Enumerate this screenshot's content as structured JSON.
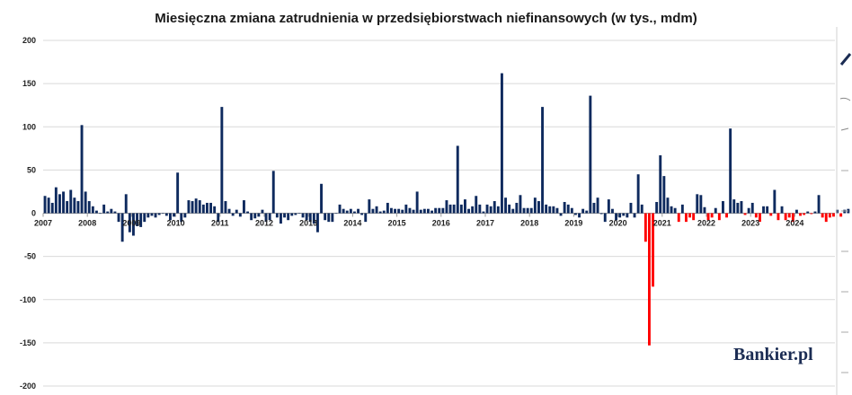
{
  "chart_data": {
    "type": "bar",
    "title": "Miesięczna zmiana zatrudnienia w przedsiębiorstwach niefinansowych (w tys., mdm)",
    "xlabel": "",
    "ylabel": "",
    "ylim": [
      -200,
      200
    ],
    "yticks": [
      200,
      150,
      100,
      50,
      0,
      -50,
      -100,
      -150,
      -200
    ],
    "grid": true,
    "legend": "none",
    "x_tick_labels": [
      "2007",
      "2008",
      "2009",
      "2010",
      "2011",
      "2012",
      "2013",
      "2014",
      "2015",
      "2016",
      "2017",
      "2018",
      "2019",
      "2020",
      "2021",
      "2022",
      "2023",
      "2024"
    ],
    "start": "2007-01",
    "series": [
      {
        "color": "#0e2a5e",
        "period": "2007-01 to 2020-12",
        "values": [
          20,
          18,
          12,
          30,
          22,
          25,
          14,
          27,
          18,
          14,
          102,
          25,
          14,
          8,
          3,
          0,
          10,
          2,
          5,
          2,
          -10,
          -33,
          22,
          -22,
          -26,
          -15,
          -16,
          -10,
          -5,
          -3,
          -5,
          -2,
          0,
          -3,
          -8,
          -4,
          47,
          -10,
          -5,
          15,
          14,
          17,
          15,
          10,
          12,
          12,
          8,
          -10,
          123,
          14,
          5,
          -3,
          4,
          -4,
          15,
          2,
          -8,
          -6,
          -4,
          4,
          -10,
          -8,
          49,
          -5,
          -12,
          -5,
          -8,
          -3,
          -2,
          0,
          -5,
          -8,
          -10,
          -12,
          -22,
          34,
          -8,
          -10,
          -10,
          0,
          10,
          5,
          3,
          5,
          2,
          5,
          -2,
          -10,
          16,
          5,
          8,
          2,
          3,
          12,
          6,
          5,
          5,
          4,
          10,
          6,
          4,
          25,
          4,
          5,
          5,
          3,
          6,
          6,
          6,
          15,
          10,
          10,
          78,
          10,
          16,
          5,
          8,
          20,
          10,
          2,
          10,
          8,
          14,
          8,
          162,
          18,
          10,
          5,
          12,
          21,
          6,
          6,
          6,
          18,
          14,
          123,
          10,
          8,
          8,
          6,
          -3,
          13,
          10,
          6,
          -2,
          -5,
          5,
          3,
          136,
          12,
          18,
          -1,
          -10,
          16,
          5,
          -8,
          -5,
          -3,
          -5,
          12,
          -5,
          45,
          10,
          -33,
          -153,
          -85
        ]
      },
      {
        "color": "#0e2a5e",
        "period": "2021-01 to 2024-12 (segments shown in navy)",
        "values": [
          13,
          67,
          43,
          18,
          8,
          6,
          -10,
          10,
          -10,
          -5,
          -8,
          22,
          21,
          7,
          -8,
          -5,
          6,
          -8,
          14,
          -5,
          98,
          16,
          12,
          14,
          -2,
          6,
          12,
          -5,
          -10,
          8,
          8,
          -3,
          27,
          -8,
          8,
          -8,
          -5,
          -10,
          4,
          -3,
          -2,
          2,
          -1,
          2,
          21,
          -5,
          -10,
          -5,
          -4,
          4,
          -4,
          4,
          5
        ]
      }
    ],
    "negative_color_after_2020": "#ff0000",
    "watermark": "Bankier.pl"
  }
}
